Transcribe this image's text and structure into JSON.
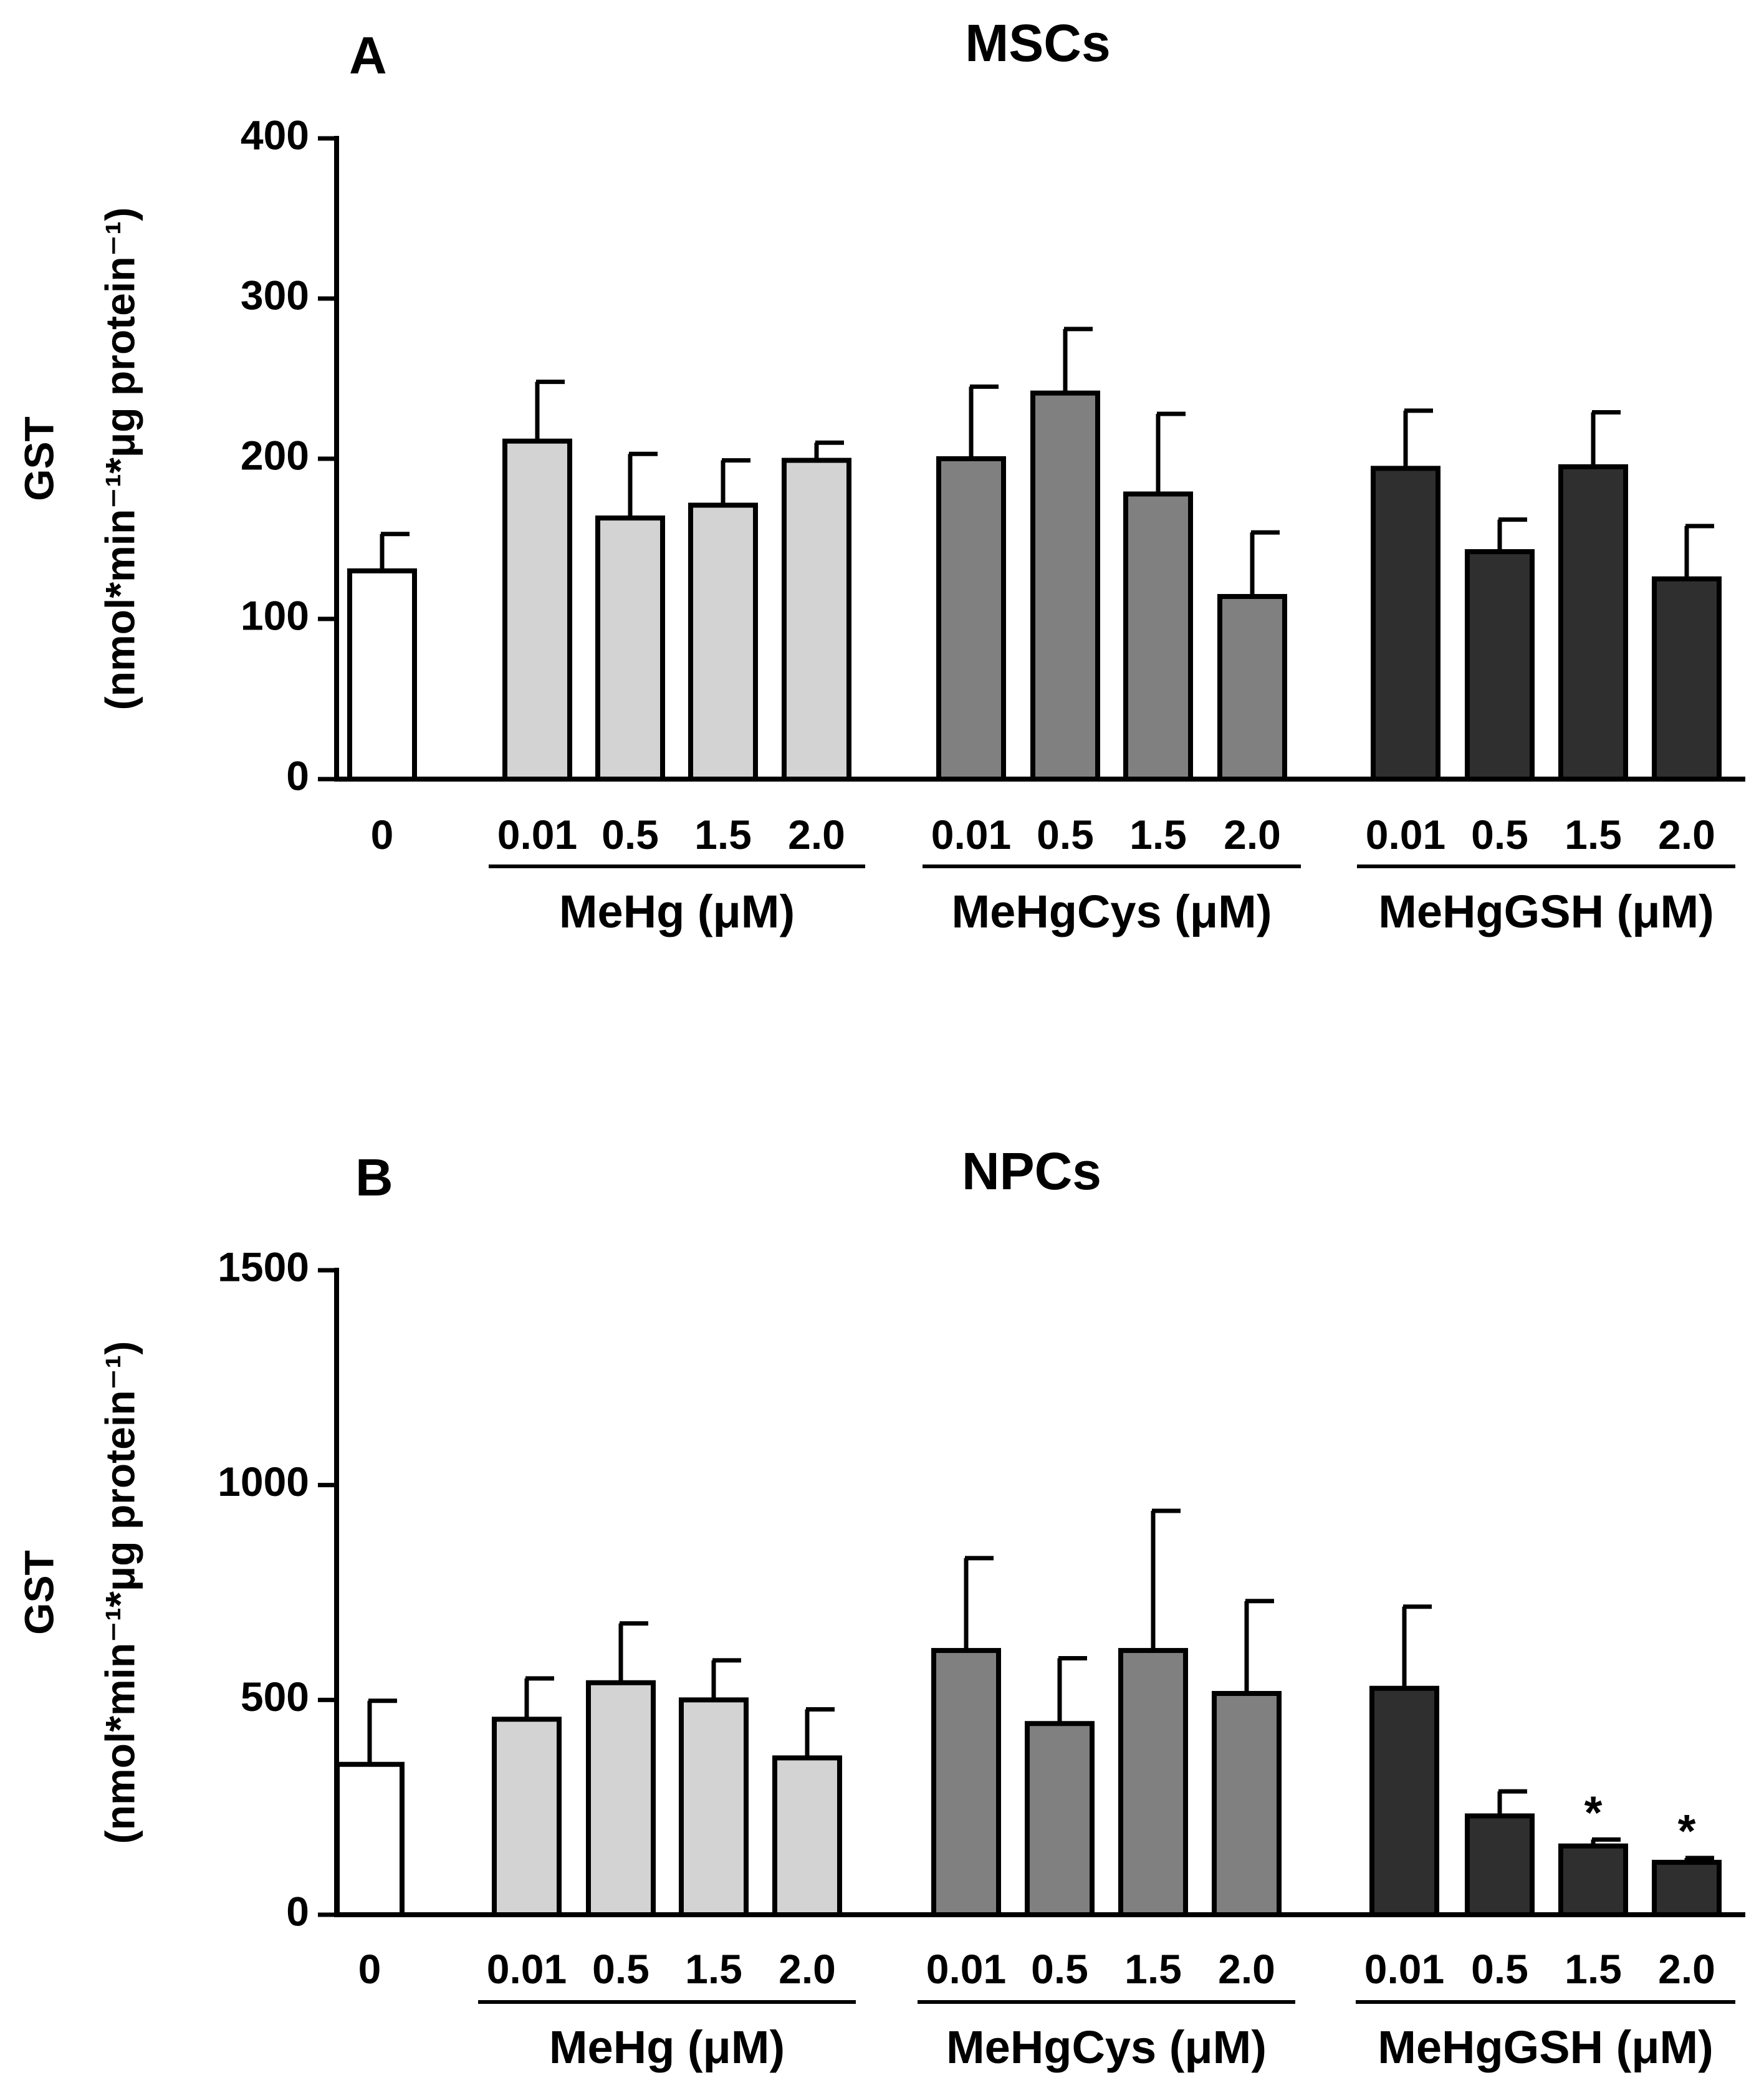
{
  "chart_data": [
    {
      "type": "bar",
      "panel_letter": "A",
      "title": "MSCs",
      "ylabel_line1": "GST",
      "ylabel_line2": "(nmol*min⁻¹*μg protein⁻¹)",
      "ylim": [
        0,
        400
      ],
      "yticks": [
        0,
        100,
        200,
        300,
        400
      ],
      "categories": [
        "0",
        "0.01",
        "0.5",
        "1.5",
        "2.0",
        "0.01",
        "0.5",
        "1.5",
        "2.0",
        "0.01",
        "0.5",
        "1.5",
        "2.0"
      ],
      "values": [
        130,
        211,
        163,
        171,
        199,
        200,
        241,
        178,
        114,
        194,
        142,
        195,
        125
      ],
      "errors": [
        23,
        37,
        40,
        28,
        11,
        45,
        40,
        50,
        40,
        36,
        20,
        34,
        33
      ],
      "significant": [
        false,
        false,
        false,
        false,
        false,
        false,
        false,
        false,
        false,
        false,
        false,
        false,
        false
      ],
      "groups": [
        {
          "label": "MeHg (μM)",
          "indices": [
            1,
            2,
            3,
            4
          ],
          "color": "#d3d3d3"
        },
        {
          "label": "MeHgCys (μM)",
          "indices": [
            5,
            6,
            7,
            8
          ],
          "color": "#808080"
        },
        {
          "label": "MeHgGSH (μM)",
          "indices": [
            9,
            10,
            11,
            12
          ],
          "color": "#2f2f2f"
        }
      ],
      "control_color": "#ffffff",
      "grid": false,
      "legend": "none"
    },
    {
      "type": "bar",
      "panel_letter": "B",
      "title": "NPCs",
      "ylabel_line1": "GST",
      "ylabel_line2": "(nmol*min⁻¹*μg protein⁻¹)",
      "ylim": [
        0,
        1500
      ],
      "yticks": [
        0,
        500,
        1000,
        1500
      ],
      "categories": [
        "0",
        "0.01",
        "0.5",
        "1.5",
        "2.0",
        "0.01",
        "0.5",
        "1.5",
        "2.0",
        "0.01",
        "0.5",
        "1.5",
        "2.0"
      ],
      "values": [
        350,
        455,
        540,
        500,
        365,
        615,
        445,
        615,
        515,
        527,
        230,
        160,
        122
      ],
      "errors": [
        148,
        95,
        138,
        92,
        113,
        215,
        152,
        325,
        215,
        190,
        57,
        15,
        10
      ],
      "significant": [
        false,
        false,
        false,
        false,
        false,
        false,
        false,
        false,
        false,
        false,
        false,
        true,
        true
      ],
      "significance_marker": "*",
      "groups": [
        {
          "label": "MeHg (μM)",
          "indices": [
            1,
            2,
            3,
            4
          ],
          "color": "#d3d3d3"
        },
        {
          "label": "MeHgCys (μM)",
          "indices": [
            5,
            6,
            7,
            8
          ],
          "color": "#808080"
        },
        {
          "label": "MeHgGSH (μM)",
          "indices": [
            9,
            10,
            11,
            12
          ],
          "color": "#2f2f2f"
        }
      ],
      "control_color": "#ffffff",
      "grid": false,
      "legend": "none"
    }
  ]
}
